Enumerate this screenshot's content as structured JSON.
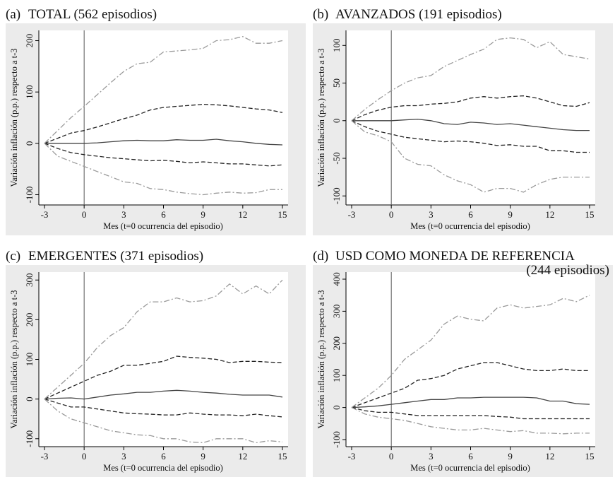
{
  "chart_data": [
    {
      "type": "line",
      "label": "(a)",
      "title": [
        "TOTAL (562 episodios)"
      ],
      "xlabel": "Mes (t=0 ocurrencia del episodio)",
      "ylabel": "Variación inflación (p.p.) respecto a t-3",
      "x": [
        -3,
        -2,
        -1,
        0,
        1,
        2,
        3,
        4,
        5,
        6,
        7,
        8,
        9,
        10,
        11,
        12,
        13,
        14,
        15
      ],
      "xlim": [
        -3,
        15
      ],
      "xticks": [
        -3,
        0,
        3,
        6,
        9,
        12,
        15
      ],
      "ylim": [
        -120,
        220
      ],
      "yticks": [
        -100,
        0,
        100,
        200
      ],
      "vline": 0,
      "series": [
        {
          "color": "#444444",
          "dash": "solid",
          "values": [
            0,
            0,
            0,
            0,
            1,
            3,
            5,
            6,
            5,
            5,
            7,
            6,
            6,
            8,
            5,
            3,
            0,
            -2,
            -3
          ]
        },
        {
          "color": "#222222",
          "dash": "dashed",
          "values": [
            0,
            10,
            20,
            25,
            32,
            40,
            48,
            55,
            65,
            70,
            72,
            74,
            76,
            75,
            73,
            70,
            67,
            65,
            60
          ]
        },
        {
          "color": "#222222",
          "dash": "dashed",
          "values": [
            0,
            -10,
            -18,
            -22,
            -25,
            -28,
            -30,
            -32,
            -34,
            -33,
            -35,
            -38,
            -36,
            -38,
            -40,
            -40,
            -42,
            -44,
            -42
          ]
        },
        {
          "color": "#9a9a9a",
          "dash": "dashdot",
          "values": [
            0,
            25,
            50,
            72,
            95,
            118,
            140,
            155,
            158,
            178,
            180,
            182,
            185,
            200,
            202,
            208,
            195,
            195,
            200
          ]
        },
        {
          "color": "#9a9a9a",
          "dash": "dashdot",
          "values": [
            0,
            -25,
            -35,
            -45,
            -55,
            -65,
            -75,
            -78,
            -88,
            -90,
            -95,
            -98,
            -100,
            -97,
            -95,
            -97,
            -96,
            -90,
            -90
          ]
        }
      ]
    },
    {
      "type": "line",
      "label": "(b)",
      "title": [
        "AVANZADOS (191 episodios)"
      ],
      "xlabel": "Mes (t=0 ocurrencia del episodio)",
      "ylabel": "Variación inflación (p.p.) respecto a t-3",
      "x": [
        -3,
        -2,
        -1,
        0,
        1,
        2,
        3,
        4,
        5,
        6,
        7,
        8,
        9,
        10,
        11,
        12,
        13,
        14,
        15
      ],
      "xlim": [
        -3,
        15
      ],
      "xticks": [
        -3,
        0,
        3,
        6,
        9,
        12,
        15
      ],
      "ylim": [
        -112,
        120
      ],
      "yticks": [
        -100,
        -50,
        0,
        50,
        100
      ],
      "vline": 0,
      "series": [
        {
          "color": "#444444",
          "dash": "solid",
          "values": [
            0,
            0,
            0,
            0,
            1,
            2,
            0,
            -4,
            -5,
            -2,
            -3,
            -5,
            -4,
            -6,
            -8,
            -10,
            -12,
            -13,
            -13
          ]
        },
        {
          "color": "#222222",
          "dash": "dashed",
          "values": [
            0,
            8,
            14,
            18,
            20,
            20,
            22,
            23,
            25,
            30,
            32,
            30,
            32,
            33,
            30,
            25,
            20,
            19,
            24
          ]
        },
        {
          "color": "#222222",
          "dash": "dashed",
          "values": [
            0,
            -8,
            -14,
            -18,
            -22,
            -24,
            -26,
            -28,
            -27,
            -28,
            -30,
            -33,
            -32,
            -34,
            -34,
            -40,
            -40,
            -42,
            -42
          ]
        },
        {
          "color": "#9a9a9a",
          "dash": "dashdot",
          "values": [
            0,
            15,
            28,
            40,
            50,
            57,
            60,
            72,
            80,
            88,
            95,
            108,
            110,
            108,
            97,
            105,
            88,
            85,
            82
          ]
        },
        {
          "color": "#9a9a9a",
          "dash": "dashdot",
          "values": [
            0,
            -15,
            -20,
            -28,
            -50,
            -58,
            -60,
            -72,
            -80,
            -85,
            -95,
            -90,
            -90,
            -95,
            -85,
            -78,
            -75,
            -75,
            -75
          ]
        }
      ]
    },
    {
      "type": "line",
      "label": "(c)",
      "title": [
        "EMERGENTES (371 episodios)"
      ],
      "xlabel": "Mes (t=0 ocurrencia del episodio)",
      "ylabel": "Variación inflación (p.p.) respecto a t-3",
      "x": [
        -3,
        -2,
        -1,
        0,
        1,
        2,
        3,
        4,
        5,
        6,
        7,
        8,
        9,
        10,
        11,
        12,
        13,
        14,
        15
      ],
      "xlim": [
        -3,
        15
      ],
      "xticks": [
        -3,
        0,
        3,
        6,
        9,
        12,
        15
      ],
      "ylim": [
        -120,
        320
      ],
      "yticks": [
        -100,
        0,
        100,
        200,
        300
      ],
      "vline": 0,
      "series": [
        {
          "color": "#444444",
          "dash": "solid",
          "values": [
            0,
            2,
            3,
            0,
            5,
            10,
            13,
            17,
            17,
            20,
            22,
            20,
            17,
            15,
            12,
            10,
            10,
            10,
            5
          ]
        },
        {
          "color": "#222222",
          "dash": "dashed",
          "values": [
            0,
            15,
            30,
            45,
            60,
            70,
            85,
            85,
            90,
            95,
            108,
            105,
            103,
            100,
            92,
            95,
            95,
            93,
            92
          ]
        },
        {
          "color": "#222222",
          "dash": "dashed",
          "values": [
            0,
            -10,
            -20,
            -20,
            -25,
            -30,
            -35,
            -37,
            -38,
            -40,
            -40,
            -35,
            -38,
            -40,
            -40,
            -42,
            -38,
            -42,
            -45
          ]
        },
        {
          "color": "#9a9a9a",
          "dash": "dashdot",
          "values": [
            0,
            30,
            60,
            90,
            130,
            160,
            180,
            220,
            245,
            245,
            255,
            245,
            248,
            260,
            290,
            265,
            285,
            265,
            300
          ]
        },
        {
          "color": "#9a9a9a",
          "dash": "dashdot",
          "values": [
            0,
            -30,
            -50,
            -60,
            -70,
            -80,
            -85,
            -90,
            -92,
            -100,
            -100,
            -108,
            -110,
            -100,
            -100,
            -100,
            -110,
            -105,
            -108
          ]
        }
      ]
    },
    {
      "type": "line",
      "label": "(d)",
      "title": [
        "USD COMO MONEDA DE REFERENCIA",
        "(244 episodios)"
      ],
      "xlabel": "Mes (t=0 ocurrencia del episodio)",
      "ylabel": "Variación inflación (p.p.) respecto a t-3",
      "x": [
        -3,
        -2,
        -1,
        0,
        1,
        2,
        3,
        4,
        5,
        6,
        7,
        8,
        9,
        10,
        11,
        12,
        13,
        14,
        15
      ],
      "xlim": [
        -3,
        15
      ],
      "xticks": [
        -3,
        0,
        3,
        6,
        9,
        12,
        15
      ],
      "ylim": [
        -122,
        422
      ],
      "yticks": [
        -100,
        0,
        100,
        200,
        300,
        400
      ],
      "vline": 0,
      "series": [
        {
          "color": "#444444",
          "dash": "solid",
          "values": [
            0,
            2,
            5,
            10,
            15,
            20,
            25,
            25,
            30,
            30,
            32,
            32,
            32,
            32,
            30,
            20,
            20,
            12,
            10
          ]
        },
        {
          "color": "#222222",
          "dash": "dashed",
          "values": [
            0,
            15,
            30,
            45,
            60,
            85,
            90,
            100,
            120,
            130,
            140,
            140,
            130,
            120,
            115,
            115,
            120,
            115,
            115
          ]
        },
        {
          "color": "#222222",
          "dash": "dashed",
          "values": [
            0,
            -10,
            -15,
            -15,
            -20,
            -25,
            -25,
            -25,
            -25,
            -25,
            -25,
            -28,
            -30,
            -35,
            -35,
            -35,
            -35,
            -35,
            -35
          ]
        },
        {
          "color": "#9a9a9a",
          "dash": "dashdot",
          "values": [
            0,
            30,
            60,
            100,
            150,
            180,
            210,
            260,
            285,
            275,
            270,
            310,
            320,
            310,
            315,
            320,
            340,
            330,
            350
          ]
        },
        {
          "color": "#9a9a9a",
          "dash": "dashdot",
          "values": [
            0,
            -20,
            -30,
            -35,
            -40,
            -50,
            -60,
            -65,
            -70,
            -70,
            -65,
            -70,
            -75,
            -72,
            -80,
            -80,
            -82,
            -80,
            -80
          ]
        }
      ]
    }
  ]
}
